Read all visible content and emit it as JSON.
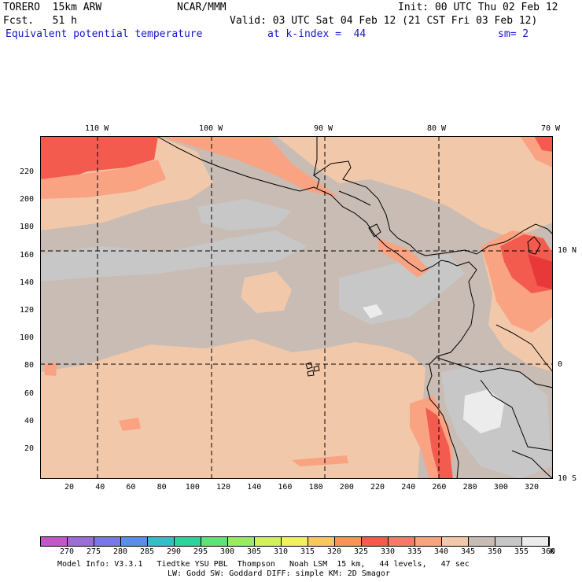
{
  "header": {
    "model": "TORERO  15km ARW",
    "org": "NCAR/MMM",
    "init": "Init: 00 UTC Thu 02 Feb 12",
    "fcst": "Fcst.   51 h",
    "valid": "Valid: 03 UTC Sat 04 Feb 12 (21 CST Fri 03 Feb 12)",
    "field": "Equivalent potential temperature",
    "level": "at k-index =  44",
    "smooth": "sm= 2"
  },
  "map": {
    "lon_labels": [
      "110 W",
      "100 W",
      "90 W",
      "80 W",
      "70 W"
    ],
    "lat_labels": [
      "10 N",
      "0",
      "10 S"
    ],
    "y_ticks": [
      "20",
      "40",
      "60",
      "80",
      "100",
      "120",
      "140",
      "160",
      "180",
      "200",
      "220"
    ],
    "x_ticks": [
      "20",
      "40",
      "60",
      "80",
      "100",
      "120",
      "140",
      "160",
      "180",
      "200",
      "220",
      "240",
      "260",
      "280",
      "300",
      "320"
    ],
    "colors": {
      "bg": "#c8bcb4",
      "gray": "#c7c7c7",
      "tan": "#f2c8aa",
      "salmon": "#f9a383",
      "red": "#f45b4f",
      "deep_red": "#e8383a",
      "white": "#ececec"
    }
  },
  "colorbar": {
    "unit": "K",
    "labels": [
      "270",
      "275",
      "280",
      "285",
      "290",
      "295",
      "300",
      "305",
      "310",
      "315",
      "320",
      "325",
      "330",
      "335",
      "340",
      "345",
      "350",
      "355",
      "360"
    ],
    "colors": [
      "#c456c8",
      "#9a6ed4",
      "#7a78e8",
      "#5a8ee8",
      "#36bec6",
      "#30d29c",
      "#60e27a",
      "#9cea62",
      "#d2f05e",
      "#f0f060",
      "#f8c860",
      "#f69454",
      "#f45b4f",
      "#f47a6c",
      "#f9a383",
      "#f2c8aa",
      "#c8bcb4",
      "#c7c7c7",
      "#ececec"
    ]
  },
  "footer": {
    "line1": "Model Info: V3.3.1   Tiedtke YSU PBL  Thompson   Noah LSM  15 km,   44 levels,   47 sec",
    "line2": "LW: Godd SW: Goddard DIFF: simple KM: 2D Smagor"
  }
}
